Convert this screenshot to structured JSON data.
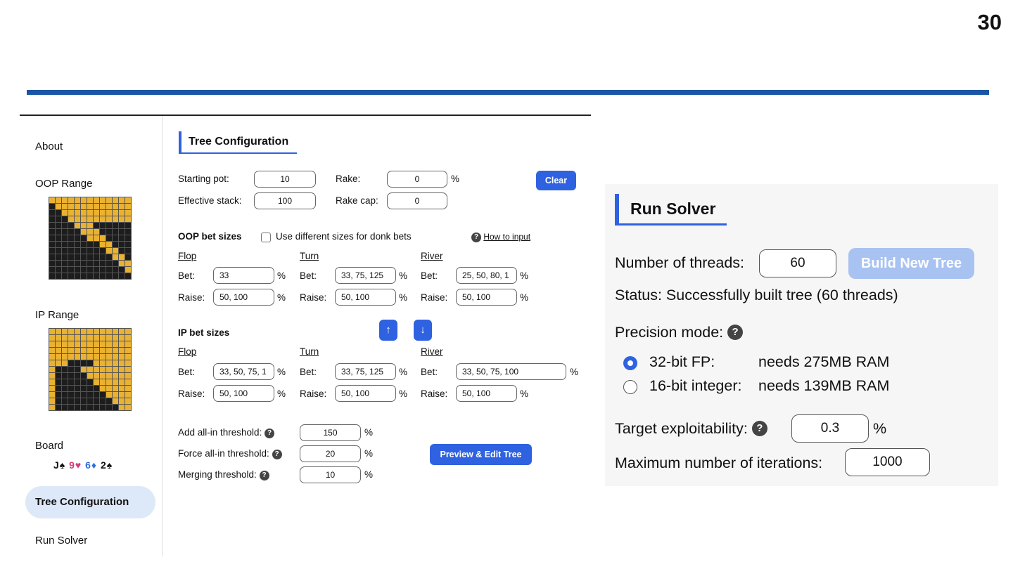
{
  "slide_number": "30",
  "sidebar": {
    "about": "About",
    "oop_range": "OOP Range",
    "ip_range": "IP Range",
    "board": "Board",
    "board_cards": [
      {
        "text": "J♠",
        "color": "#111111"
      },
      {
        "text": "9♥",
        "color": "#d23c7a"
      },
      {
        "text": "6♦",
        "color": "#2d6fe0"
      },
      {
        "text": "2♠",
        "color": "#111111"
      }
    ],
    "tree_configuration": "Tree Configuration",
    "run_solver": "Run Solver"
  },
  "tree": {
    "title": "Tree Configuration",
    "starting_pot_label": "Starting pot:",
    "starting_pot": "10",
    "rake_label": "Rake:",
    "rake": "0",
    "pct": "%",
    "clear": "Clear",
    "effective_stack_label": "Effective stack:",
    "effective_stack": "100",
    "rake_cap_label": "Rake cap:",
    "rake_cap": "0",
    "oop_bet_sizes": "OOP bet sizes",
    "donk_label": "Use different sizes for donk bets",
    "how_to_input": "How to input",
    "flop": "Flop",
    "turn": "Turn",
    "river": "River",
    "bet_label": "Bet:",
    "raise_label": "Raise:",
    "oop": {
      "flop_bet": "33",
      "flop_raise": "50, 100",
      "turn_bet": "33, 75, 125",
      "turn_raise": "50, 100",
      "river_bet": "25, 50, 80, 1",
      "river_raise": "50, 100"
    },
    "ip_bet_sizes": "IP bet sizes",
    "ip": {
      "flop_bet": "33, 50, 75, 1",
      "flop_raise": "50, 100",
      "turn_bet": "33, 75, 125",
      "turn_raise": "50, 100",
      "river_bet": "33, 50, 75, 100",
      "river_raise": "50, 100"
    },
    "add_allin_label": "Add all-in threshold:",
    "add_allin": "150",
    "force_allin_label": "Force all-in threshold:",
    "force_allin": "20",
    "merging_label": "Merging threshold:",
    "merging": "10",
    "preview_button": "Preview & Edit Tree"
  },
  "run_solver": {
    "title": "Run Solver",
    "threads_label": "Number of threads:",
    "threads": "60",
    "build_button": "Build New Tree",
    "status": "Status: Successfully built tree (60 threads)",
    "precision_label": "Precision mode:",
    "opt32_name": "32-bit FP:",
    "opt32_ram": "needs 275MB RAM",
    "opt16_name": "16-bit integer:",
    "opt16_ram": "needs 139MB RAM",
    "target_label": "Target exploitability:",
    "target": "0.3",
    "pct": "%",
    "max_iter_label": "Maximum number of iterations:",
    "max_iter": "1000"
  }
}
